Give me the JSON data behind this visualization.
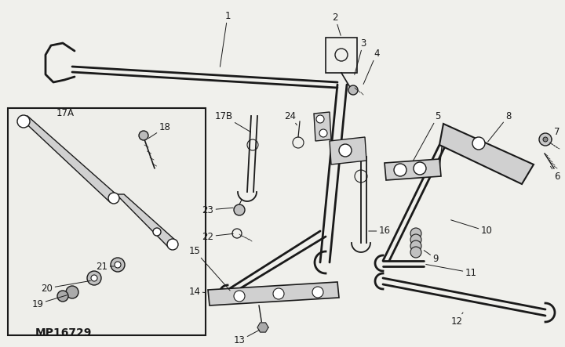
{
  "background_color": "#f0f0ec",
  "line_color": "#1a1a1a",
  "model_number": "MP16729",
  "figsize": [
    7.2,
    4.43
  ],
  "dpi": 100
}
